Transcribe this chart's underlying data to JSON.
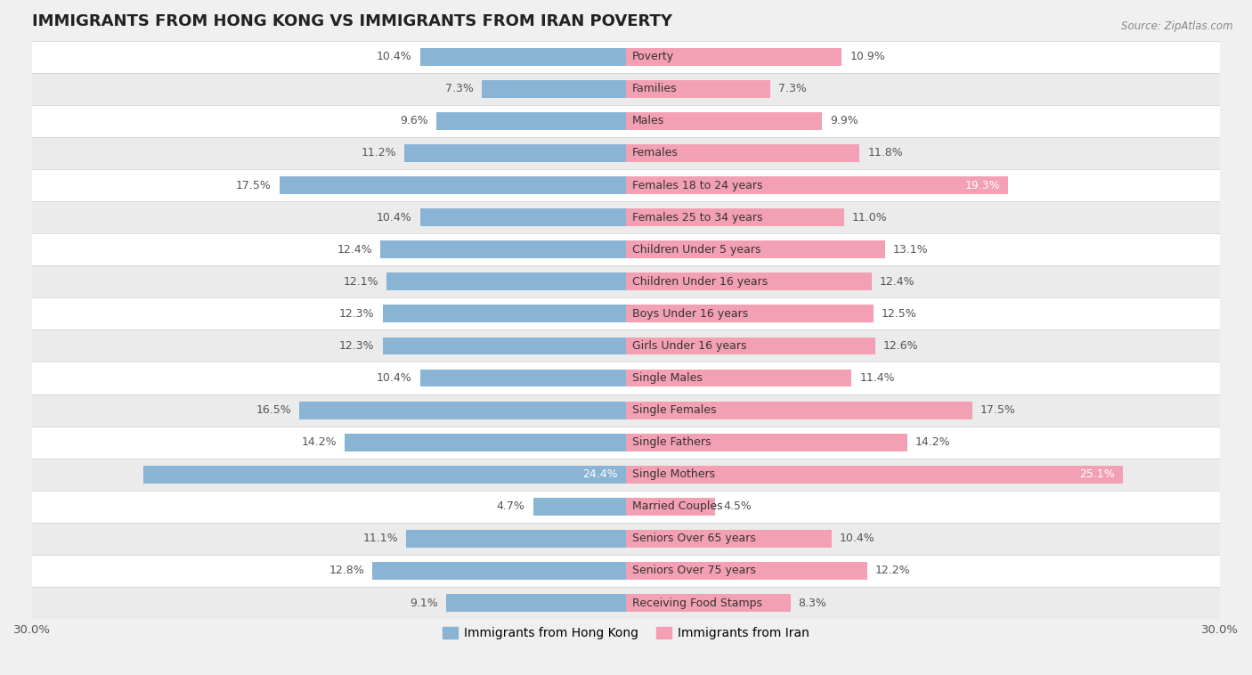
{
  "title": "IMMIGRANTS FROM HONG KONG VS IMMIGRANTS FROM IRAN POVERTY",
  "source": "Source: ZipAtlas.com",
  "categories": [
    "Poverty",
    "Families",
    "Males",
    "Females",
    "Females 18 to 24 years",
    "Females 25 to 34 years",
    "Children Under 5 years",
    "Children Under 16 years",
    "Boys Under 16 years",
    "Girls Under 16 years",
    "Single Males",
    "Single Females",
    "Single Fathers",
    "Single Mothers",
    "Married Couples",
    "Seniors Over 65 years",
    "Seniors Over 75 years",
    "Receiving Food Stamps"
  ],
  "hong_kong_values": [
    10.4,
    7.3,
    9.6,
    11.2,
    17.5,
    10.4,
    12.4,
    12.1,
    12.3,
    12.3,
    10.4,
    16.5,
    14.2,
    24.4,
    4.7,
    11.1,
    12.8,
    9.1
  ],
  "iran_values": [
    10.9,
    7.3,
    9.9,
    11.8,
    19.3,
    11.0,
    13.1,
    12.4,
    12.5,
    12.6,
    11.4,
    17.5,
    14.2,
    25.1,
    4.5,
    10.4,
    12.2,
    8.3
  ],
  "hong_kong_color": "#8ab4d4",
  "iran_color": "#f4a0b4",
  "row_colors": [
    "#ffffff",
    "#ebebeb"
  ],
  "xlim": 30.0,
  "bar_height": 0.55,
  "label_fontsize": 9,
  "category_fontsize": 9,
  "title_fontsize": 13,
  "legend_label_hk": "Immigrants from Hong Kong",
  "legend_label_iran": "Immigrants from Iran",
  "inside_label_threshold": 18.0,
  "special_inside_hk": [
    "Single Mothers"
  ],
  "special_inside_iran": [
    "Females 18 to 24 years",
    "Single Mothers"
  ]
}
